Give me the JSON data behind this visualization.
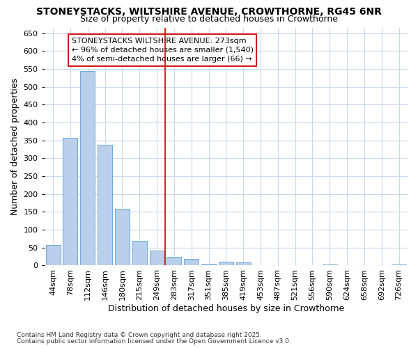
{
  "title": "STONEYSTACKS, WILTSHIRE AVENUE, CROWTHORNE, RG45 6NR",
  "subtitle": "Size of property relative to detached houses in Crowthorne",
  "xlabel": "Distribution of detached houses by size in Crowthorne",
  "ylabel": "Number of detached properties",
  "bar_color": "#b8d0eb",
  "bar_edge_color": "#6fa8d6",
  "background_color": "#ffffff",
  "plot_bg_color": "#ffffff",
  "grid_color": "#c8d8ee",
  "vline_color": "#cc0000",
  "vline_index": 6.5,
  "annotation_text": "STONEYSTACKS WILTSHIRE AVENUE: 273sqm\n← 96% of detached houses are smaller (1,540)\n4% of semi-detached houses are larger (66) →",
  "annotation_box_facecolor": "#ffffff",
  "annotation_box_edgecolor": "#cc0000",
  "categories": [
    "44sqm",
    "78sqm",
    "112sqm",
    "146sqm",
    "180sqm",
    "215sqm",
    "249sqm",
    "283sqm",
    "317sqm",
    "351sqm",
    "385sqm",
    "419sqm",
    "453sqm",
    "487sqm",
    "521sqm",
    "556sqm",
    "590sqm",
    "624sqm",
    "658sqm",
    "692sqm",
    "726sqm"
  ],
  "values": [
    58,
    357,
    545,
    338,
    158,
    70,
    42,
    24,
    18,
    5,
    10,
    9,
    0,
    0,
    0,
    0,
    3,
    0,
    0,
    0,
    3
  ],
  "ylim": [
    0,
    665
  ],
  "yticks": [
    0,
    50,
    100,
    150,
    200,
    250,
    300,
    350,
    400,
    450,
    500,
    550,
    600,
    650
  ],
  "footer_line1": "Contains HM Land Registry data © Crown copyright and database right 2025.",
  "footer_line2": "Contains public sector information licensed under the Open Government Licence v3.0.",
  "title_fontsize": 10,
  "subtitle_fontsize": 9,
  "axis_label_fontsize": 9,
  "tick_fontsize": 8,
  "annotation_fontsize": 8
}
